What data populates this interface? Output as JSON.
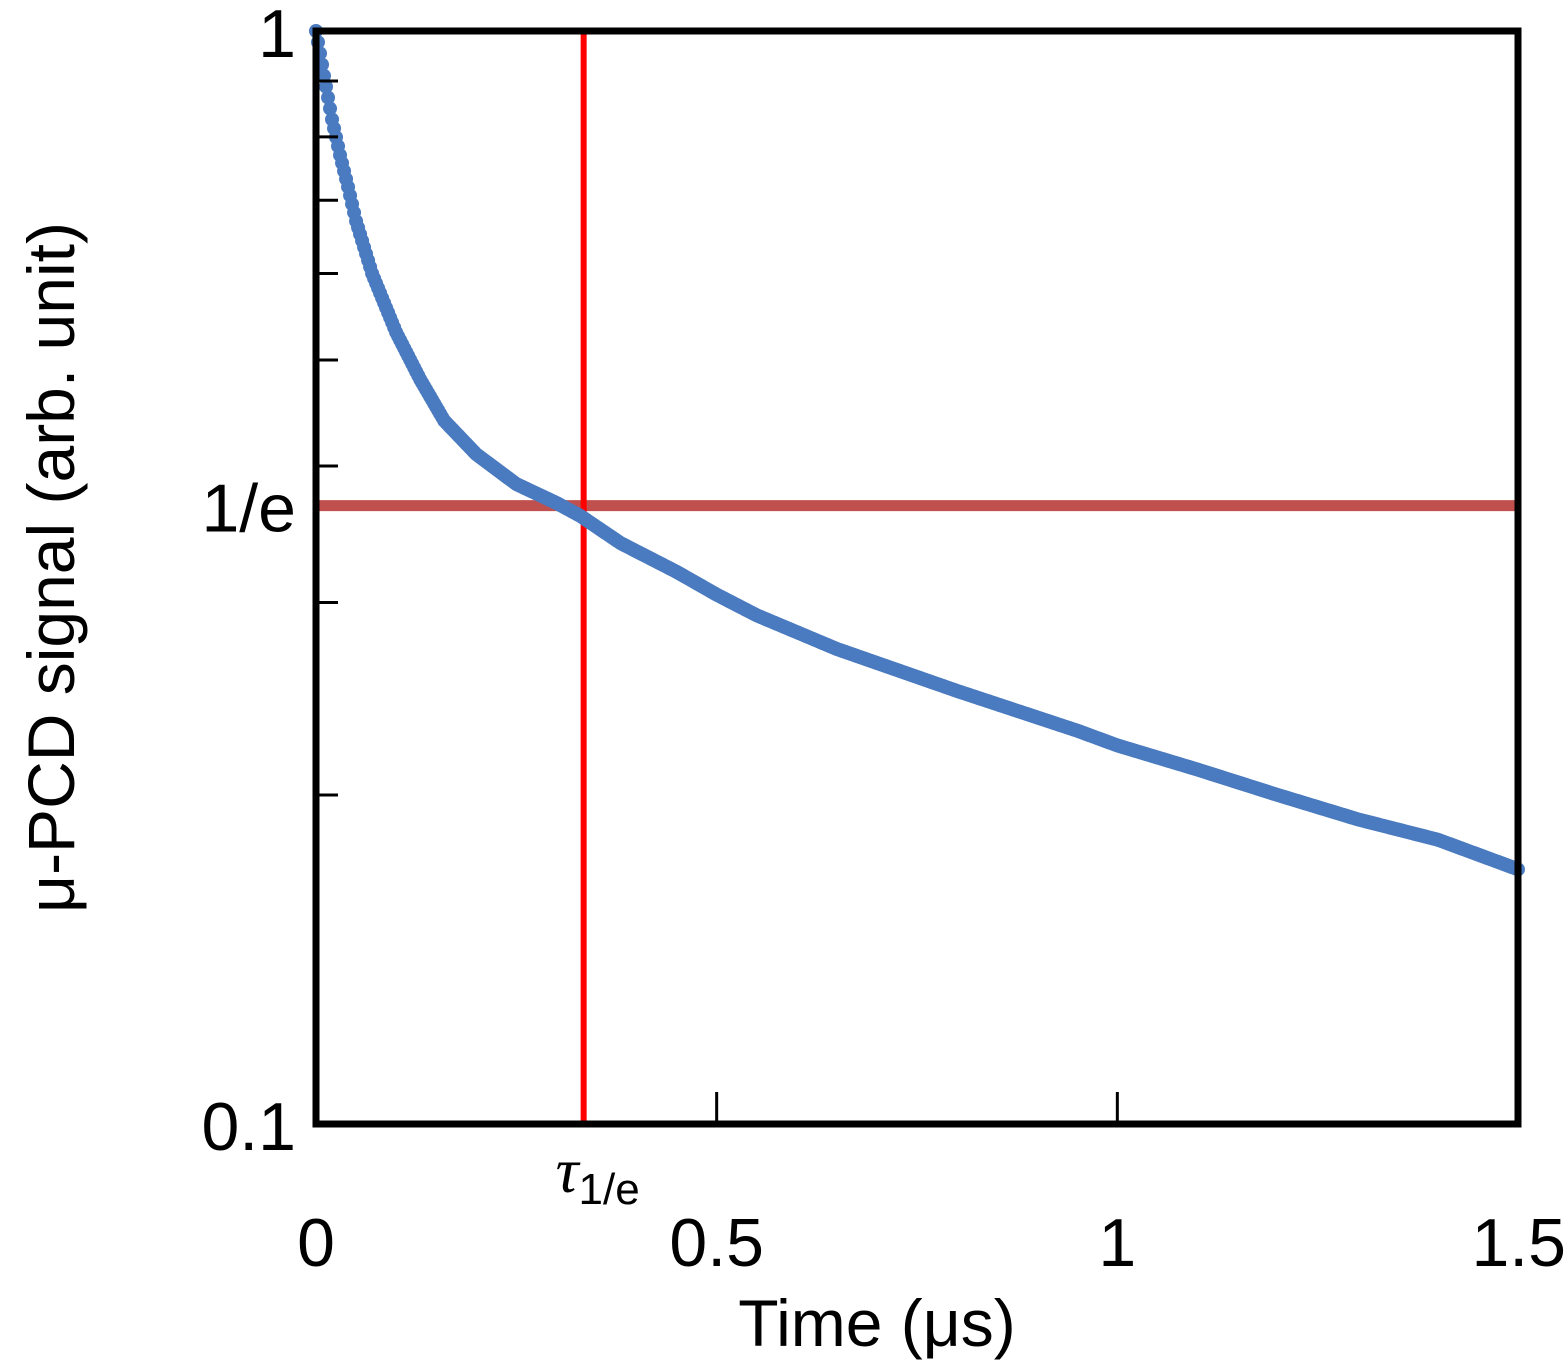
{
  "chart_data": {
    "type": "scatter",
    "xlabel": "Time (μs)",
    "ylabel": "μ-PCD signal (arb. unit)",
    "xlim": [
      0,
      1.5
    ],
    "ylim": [
      0.1,
      1
    ],
    "y_scale": "log",
    "grid": false,
    "x_ticks": [
      {
        "value": 0,
        "label": "0"
      },
      {
        "value": 0.5,
        "label": "0.5"
      },
      {
        "value": 1,
        "label": "1"
      },
      {
        "value": 1.5,
        "label": "1.5"
      }
    ],
    "y_ticks": [
      {
        "value": 1,
        "label": "1"
      },
      {
        "value": 0.3679,
        "label": "1/e"
      },
      {
        "value": 0.1,
        "label": "0.1"
      }
    ],
    "y_minor_ticks": [
      0.9,
      0.8,
      0.7,
      0.6,
      0.5,
      0.4,
      0.3,
      0.2
    ],
    "series": [
      {
        "color": "#4a7abf",
        "x": [
          0,
          0.01,
          0.02,
          0.03,
          0.04,
          0.05,
          0.07,
          0.1,
          0.13,
          0.16,
          0.2,
          0.25,
          0.3,
          0.33,
          0.38,
          0.45,
          0.5,
          0.55,
          0.65,
          0.8,
          0.95,
          1.0,
          1.1,
          1.2,
          1.3,
          1.4,
          1.5
        ],
        "y": [
          1.0,
          0.91,
          0.83,
          0.77,
          0.72,
          0.67,
          0.6,
          0.53,
          0.48,
          0.44,
          0.41,
          0.385,
          0.37,
          0.36,
          0.34,
          0.32,
          0.305,
          0.292,
          0.272,
          0.249,
          0.229,
          0.222,
          0.211,
          0.2,
          0.19,
          0.182,
          0.171
        ]
      }
    ],
    "reference_lines": [
      {
        "orientation": "horizontal",
        "value": 0.3679,
        "color": "#c0504d"
      },
      {
        "orientation": "vertical",
        "value": 0.334,
        "color": "#ff0000"
      }
    ],
    "annotation": {
      "symbol": "τ",
      "subscript": "1/e",
      "x": 0.334
    }
  }
}
